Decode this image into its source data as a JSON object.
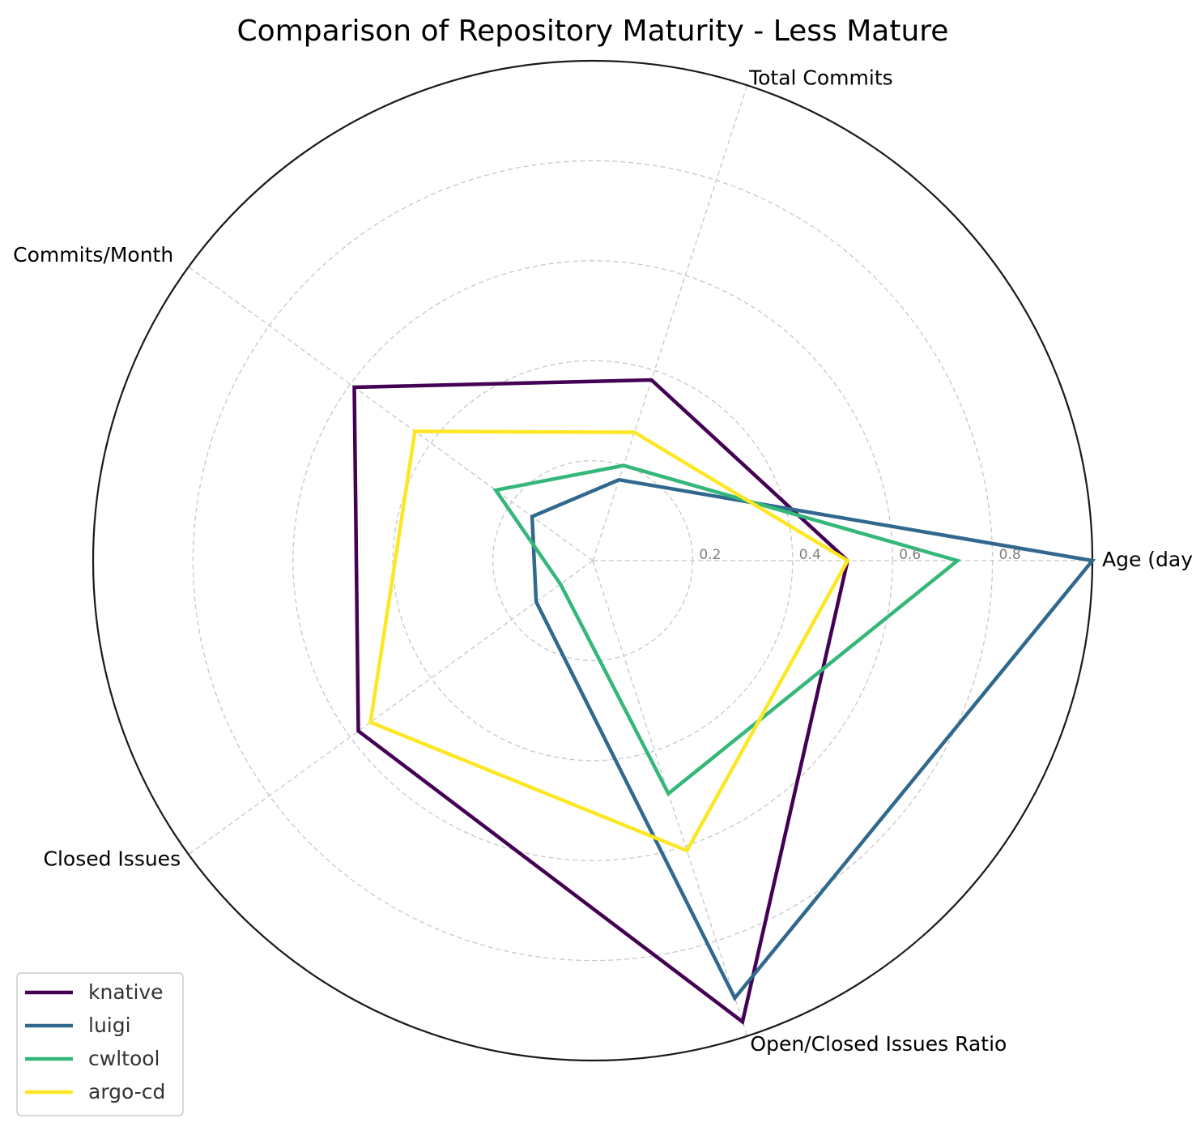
{
  "chart_data": {
    "type": "radar",
    "title": "Comparison of Repository Maturity - Less Mature",
    "axes": [
      "Age (days)",
      "Total Commits",
      "Commits/Month",
      "Closed Issues",
      "Open/Closed Issues Ratio"
    ],
    "rlim": [
      0,
      1
    ],
    "rticks": [
      0.2,
      0.4,
      0.6,
      0.8
    ],
    "rtick_labels": [
      "0.2",
      "0.4",
      "0.6",
      "0.8"
    ],
    "grid": true,
    "legend_position": "lower-left",
    "series": [
      {
        "name": "knative",
        "color": "#440154",
        "values": [
          0.51,
          0.38,
          0.59,
          0.58,
          0.97
        ]
      },
      {
        "name": "luigi",
        "color": "#31688e",
        "values": [
          1.0,
          0.17,
          0.15,
          0.14,
          0.92
        ]
      },
      {
        "name": "cwltool",
        "color": "#35b779",
        "values": [
          0.73,
          0.2,
          0.24,
          0.08,
          0.49
        ]
      },
      {
        "name": "argo-cd",
        "color": "#fde725",
        "values": [
          0.51,
          0.27,
          0.44,
          0.55,
          0.61
        ]
      }
    ]
  }
}
